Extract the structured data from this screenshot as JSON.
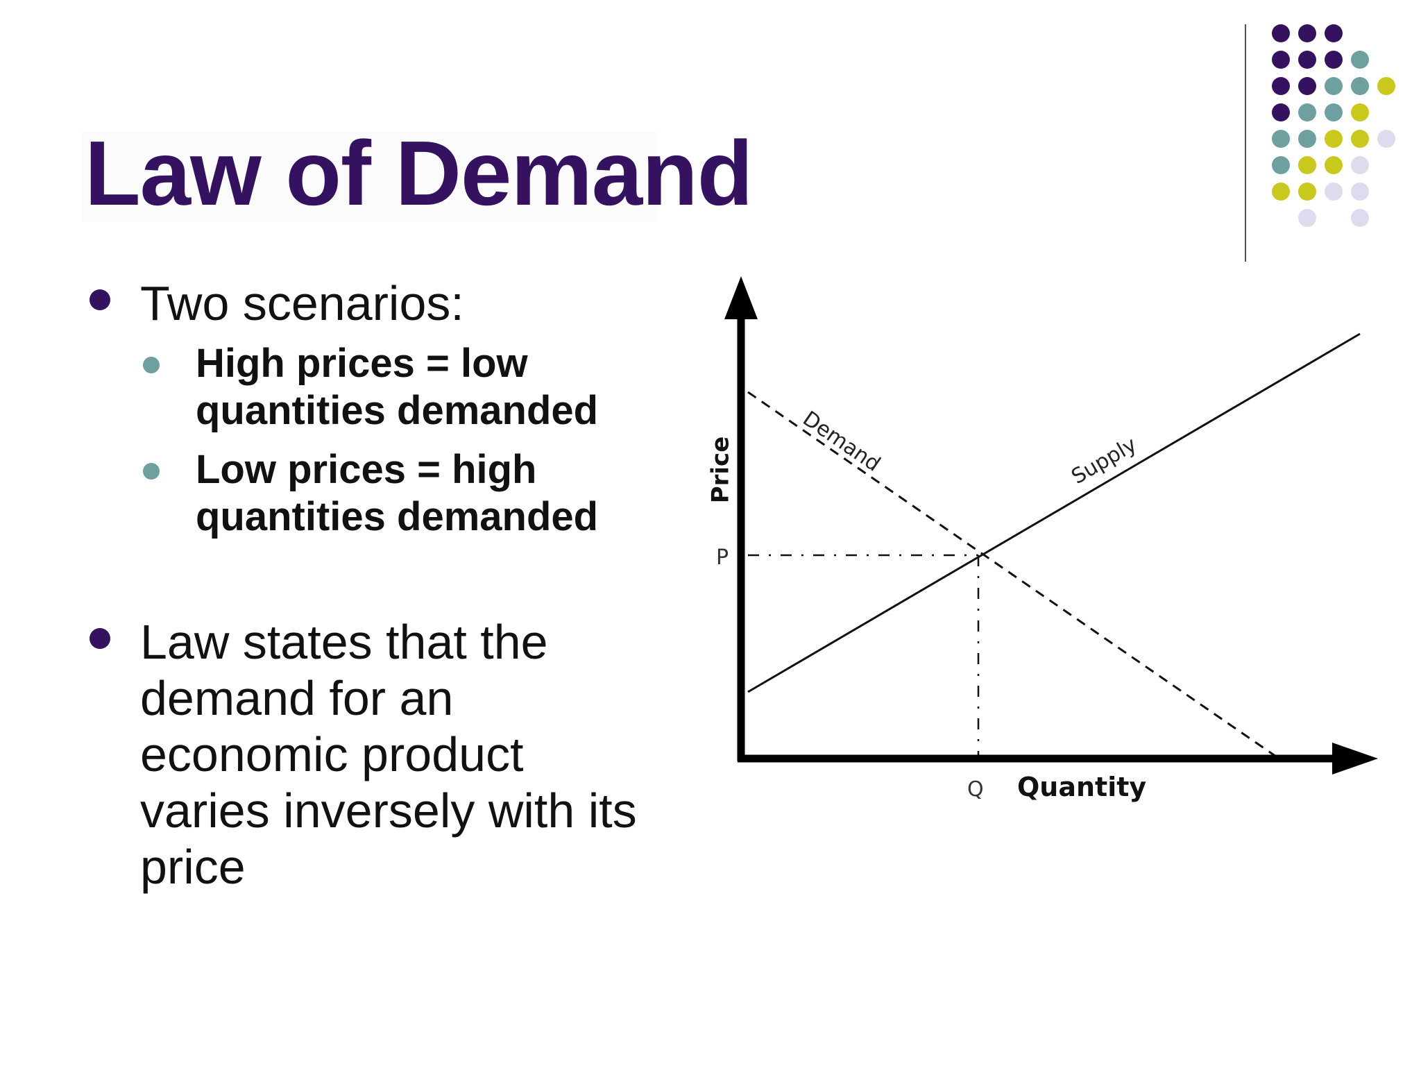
{
  "slide": {
    "title": "Law of Demand",
    "bullets": [
      {
        "text_lines": [
          "Two scenarios:"
        ],
        "sub_bullets": [
          {
            "text_lines": [
              "High prices = low",
              "quantities demanded"
            ]
          },
          {
            "text_lines": [
              "Low prices = high",
              "quantities demanded"
            ]
          }
        ]
      },
      {
        "text_lines": [
          "Law states that the",
          "demand for an",
          "economic product",
          "varies inversely with its",
          "price"
        ]
      }
    ]
  },
  "diagram": {
    "y_axis_label": "Price",
    "x_axis_label": "Quantity",
    "price_marker": "P",
    "quantity_marker": "Q",
    "demand_label": "Demand",
    "supply_label": "Supply"
  },
  "decoration": {
    "dot_colors": {
      "purple": "#35125f",
      "teal": "#6fa0a0",
      "olive": "#c9c81c",
      "lavender": "#dcdcee"
    }
  }
}
